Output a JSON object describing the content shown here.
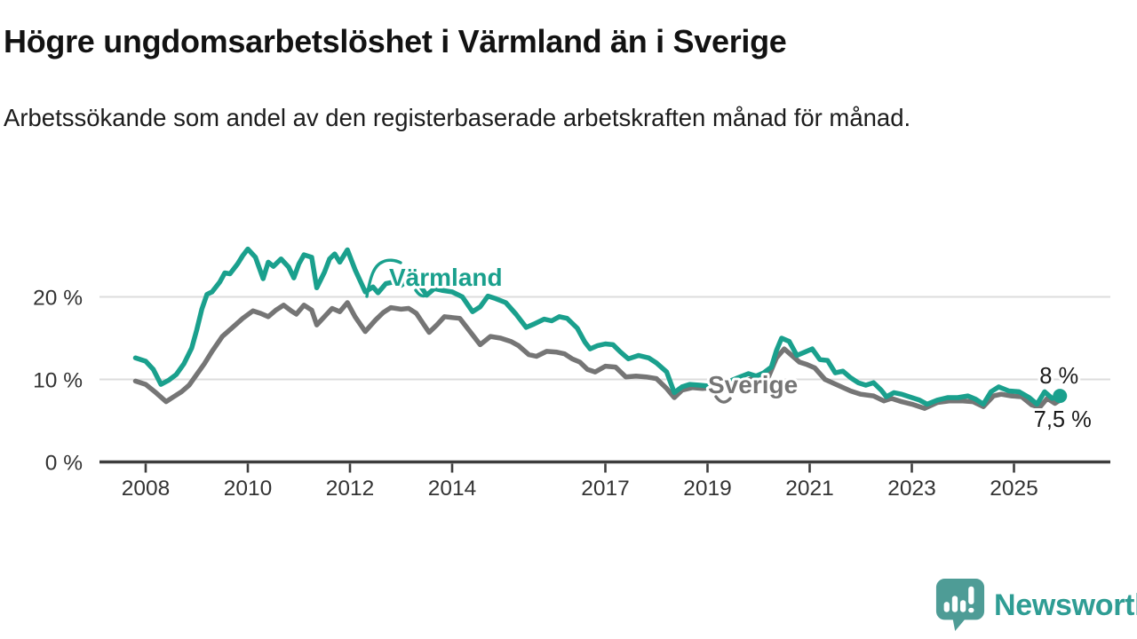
{
  "chart_data": {
    "type": "line",
    "title": "Högre ungdomsarbetslöshet i Värmland än i Sverige",
    "subtitle": "Arbetssökande som andel av den registerbaserade arbetskraften månad för månad.",
    "unit": "%",
    "grid": "horizontal",
    "legend_position": "direct-line-labels",
    "xlim": [
      2007.7,
      2026.3
    ],
    "ylim": [
      0,
      28
    ],
    "x_ticks": [
      "2008",
      "2010",
      "2012",
      "2014",
      "2017",
      "2019",
      "2021",
      "2023",
      "2025"
    ],
    "x_tick_years": [
      2008,
      2010,
      2012,
      2014,
      2017,
      2019,
      2021,
      2023,
      2025
    ],
    "y_ticks": [
      {
        "value": 20,
        "label": "20 %"
      },
      {
        "value": 10,
        "label": "10 %"
      },
      {
        "value": 0,
        "label": "0 %"
      }
    ],
    "colors": {
      "varmland": "#1aa08d",
      "sverige": "#757575",
      "grid": "#dcdcdc",
      "axis": "#3d3d3d",
      "tick_text": "#333333",
      "end_label_text": "#1a1a1a"
    },
    "series": [
      {
        "name": "Sverige",
        "label_text": "Sverige",
        "end_label": "7,5 %",
        "end_value": 7.5,
        "color": "#757575",
        "end_dot": false,
        "points": [
          [
            2007.8,
            9.8
          ],
          [
            2008.0,
            9.4
          ],
          [
            2008.2,
            8.4
          ],
          [
            2008.4,
            7.3
          ],
          [
            2008.55,
            7.9
          ],
          [
            2008.7,
            8.5
          ],
          [
            2008.85,
            9.3
          ],
          [
            2009.0,
            10.6
          ],
          [
            2009.15,
            11.9
          ],
          [
            2009.3,
            13.4
          ],
          [
            2009.5,
            15.2
          ],
          [
            2009.7,
            16.3
          ],
          [
            2009.9,
            17.4
          ],
          [
            2010.1,
            18.3
          ],
          [
            2010.25,
            18.0
          ],
          [
            2010.4,
            17.6
          ],
          [
            2010.55,
            18.4
          ],
          [
            2010.7,
            19.0
          ],
          [
            2010.85,
            18.3
          ],
          [
            2010.95,
            17.9
          ],
          [
            2011.1,
            19.0
          ],
          [
            2011.25,
            18.4
          ],
          [
            2011.35,
            16.6
          ],
          [
            2011.5,
            17.6
          ],
          [
            2011.65,
            18.6
          ],
          [
            2011.8,
            18.2
          ],
          [
            2011.95,
            19.3
          ],
          [
            2012.1,
            17.6
          ],
          [
            2012.3,
            15.8
          ],
          [
            2012.5,
            17.2
          ],
          [
            2012.65,
            18.1
          ],
          [
            2012.8,
            18.7
          ],
          [
            2013.0,
            18.5
          ],
          [
            2013.15,
            18.6
          ],
          [
            2013.3,
            18.0
          ],
          [
            2013.45,
            16.6
          ],
          [
            2013.55,
            15.7
          ],
          [
            2013.7,
            16.6
          ],
          [
            2013.85,
            17.6
          ],
          [
            2014.0,
            17.5
          ],
          [
            2014.15,
            17.4
          ],
          [
            2014.35,
            15.8
          ],
          [
            2014.55,
            14.2
          ],
          [
            2014.75,
            15.2
          ],
          [
            2014.95,
            15.0
          ],
          [
            2015.15,
            14.6
          ],
          [
            2015.3,
            14.1
          ],
          [
            2015.5,
            13.0
          ],
          [
            2015.65,
            12.8
          ],
          [
            2015.85,
            13.4
          ],
          [
            2016.05,
            13.3
          ],
          [
            2016.2,
            13.1
          ],
          [
            2016.35,
            12.5
          ],
          [
            2016.5,
            12.1
          ],
          [
            2016.65,
            11.2
          ],
          [
            2016.8,
            10.9
          ],
          [
            2017.0,
            11.6
          ],
          [
            2017.2,
            11.5
          ],
          [
            2017.4,
            10.3
          ],
          [
            2017.6,
            10.4
          ],
          [
            2017.8,
            10.3
          ],
          [
            2018.0,
            10.1
          ],
          [
            2018.2,
            8.9
          ],
          [
            2018.35,
            7.8
          ],
          [
            2018.5,
            8.7
          ],
          [
            2018.7,
            9.0
          ],
          [
            2018.9,
            8.9
          ],
          [
            2019.1,
            9.0
          ],
          [
            2019.3,
            9.1
          ],
          [
            2019.5,
            9.4
          ],
          [
            2019.7,
            9.8
          ],
          [
            2019.9,
            10.1
          ],
          [
            2020.05,
            10.0
          ],
          [
            2020.2,
            10.4
          ],
          [
            2020.35,
            12.6
          ],
          [
            2020.5,
            13.7
          ],
          [
            2020.65,
            12.9
          ],
          [
            2020.8,
            12.1
          ],
          [
            2020.95,
            11.8
          ],
          [
            2021.1,
            11.4
          ],
          [
            2021.3,
            10.0
          ],
          [
            2021.55,
            9.3
          ],
          [
            2021.8,
            8.6
          ],
          [
            2022.0,
            8.2
          ],
          [
            2022.25,
            8.0
          ],
          [
            2022.45,
            7.4
          ],
          [
            2022.6,
            7.7
          ],
          [
            2022.8,
            7.3
          ],
          [
            2023.0,
            7.0
          ],
          [
            2023.25,
            6.5
          ],
          [
            2023.5,
            7.2
          ],
          [
            2023.75,
            7.4
          ],
          [
            2024.0,
            7.4
          ],
          [
            2024.2,
            7.3
          ],
          [
            2024.4,
            6.7
          ],
          [
            2024.6,
            8.0
          ],
          [
            2024.75,
            8.2
          ],
          [
            2024.95,
            8.0
          ],
          [
            2025.15,
            7.9
          ],
          [
            2025.35,
            6.9
          ],
          [
            2025.5,
            6.6
          ],
          [
            2025.65,
            7.7
          ],
          [
            2025.8,
            7.1
          ],
          [
            2025.9,
            7.5
          ]
        ]
      },
      {
        "name": "Värmland",
        "label_text": "Värmland",
        "end_label": "8 %",
        "end_value": 8,
        "color": "#1aa08d",
        "end_dot": true,
        "points": [
          [
            2007.8,
            12.6
          ],
          [
            2008.0,
            12.2
          ],
          [
            2008.15,
            11.2
          ],
          [
            2008.3,
            9.4
          ],
          [
            2008.45,
            9.9
          ],
          [
            2008.6,
            10.6
          ],
          [
            2008.75,
            11.9
          ],
          [
            2008.9,
            13.8
          ],
          [
            2009.0,
            16.0
          ],
          [
            2009.1,
            18.5
          ],
          [
            2009.2,
            20.3
          ],
          [
            2009.3,
            20.6
          ],
          [
            2009.45,
            21.8
          ],
          [
            2009.55,
            22.9
          ],
          [
            2009.65,
            22.8
          ],
          [
            2009.8,
            24.0
          ],
          [
            2009.9,
            25.0
          ],
          [
            2010.0,
            25.8
          ],
          [
            2010.15,
            24.8
          ],
          [
            2010.3,
            22.2
          ],
          [
            2010.4,
            24.2
          ],
          [
            2010.5,
            23.7
          ],
          [
            2010.65,
            24.6
          ],
          [
            2010.8,
            23.6
          ],
          [
            2010.9,
            22.3
          ],
          [
            2011.0,
            24.0
          ],
          [
            2011.1,
            25.1
          ],
          [
            2011.25,
            24.8
          ],
          [
            2011.35,
            21.1
          ],
          [
            2011.5,
            23.0
          ],
          [
            2011.6,
            24.6
          ],
          [
            2011.7,
            25.2
          ],
          [
            2011.8,
            24.2
          ],
          [
            2011.95,
            25.7
          ],
          [
            2012.1,
            23.3
          ],
          [
            2012.3,
            20.6
          ],
          [
            2012.45,
            21.2
          ],
          [
            2012.55,
            20.5
          ],
          [
            2012.7,
            21.6
          ],
          [
            2012.85,
            21.8
          ],
          [
            2013.0,
            21.4
          ],
          [
            2013.2,
            22.3
          ],
          [
            2013.35,
            21.6
          ],
          [
            2013.5,
            20.2
          ],
          [
            2013.65,
            21.0
          ],
          [
            2013.8,
            20.8
          ],
          [
            2014.0,
            20.6
          ],
          [
            2014.2,
            20.0
          ],
          [
            2014.4,
            18.2
          ],
          [
            2014.55,
            18.8
          ],
          [
            2014.7,
            20.1
          ],
          [
            2014.85,
            19.8
          ],
          [
            2015.05,
            19.3
          ],
          [
            2015.25,
            17.9
          ],
          [
            2015.45,
            16.3
          ],
          [
            2015.6,
            16.7
          ],
          [
            2015.8,
            17.3
          ],
          [
            2015.95,
            17.1
          ],
          [
            2016.1,
            17.6
          ],
          [
            2016.25,
            17.4
          ],
          [
            2016.45,
            16.2
          ],
          [
            2016.6,
            14.5
          ],
          [
            2016.7,
            13.7
          ],
          [
            2016.85,
            14.1
          ],
          [
            2017.0,
            14.3
          ],
          [
            2017.15,
            14.2
          ],
          [
            2017.3,
            13.3
          ],
          [
            2017.45,
            12.5
          ],
          [
            2017.65,
            12.9
          ],
          [
            2017.85,
            12.6
          ],
          [
            2018.0,
            12.0
          ],
          [
            2018.2,
            10.9
          ],
          [
            2018.35,
            8.4
          ],
          [
            2018.5,
            9.1
          ],
          [
            2018.65,
            9.4
          ],
          [
            2018.85,
            9.3
          ],
          [
            2019.0,
            9.2
          ],
          [
            2019.2,
            9.4
          ],
          [
            2019.4,
            9.7
          ],
          [
            2019.6,
            10.2
          ],
          [
            2019.8,
            10.7
          ],
          [
            2019.95,
            10.4
          ],
          [
            2020.1,
            10.8
          ],
          [
            2020.25,
            11.5
          ],
          [
            2020.35,
            13.5
          ],
          [
            2020.45,
            15.0
          ],
          [
            2020.6,
            14.6
          ],
          [
            2020.75,
            12.9
          ],
          [
            2020.9,
            13.3
          ],
          [
            2021.05,
            13.7
          ],
          [
            2021.2,
            12.4
          ],
          [
            2021.35,
            12.3
          ],
          [
            2021.5,
            10.8
          ],
          [
            2021.65,
            11.0
          ],
          [
            2021.8,
            10.2
          ],
          [
            2021.95,
            9.6
          ],
          [
            2022.1,
            9.3
          ],
          [
            2022.25,
            9.6
          ],
          [
            2022.4,
            8.7
          ],
          [
            2022.5,
            7.9
          ],
          [
            2022.65,
            8.4
          ],
          [
            2022.8,
            8.2
          ],
          [
            2023.0,
            7.8
          ],
          [
            2023.15,
            7.5
          ],
          [
            2023.3,
            7.0
          ],
          [
            2023.5,
            7.5
          ],
          [
            2023.7,
            7.8
          ],
          [
            2023.9,
            7.8
          ],
          [
            2024.1,
            8.0
          ],
          [
            2024.25,
            7.6
          ],
          [
            2024.4,
            7.0
          ],
          [
            2024.55,
            8.5
          ],
          [
            2024.7,
            9.1
          ],
          [
            2024.9,
            8.6
          ],
          [
            2025.1,
            8.5
          ],
          [
            2025.3,
            7.8
          ],
          [
            2025.45,
            7.0
          ],
          [
            2025.6,
            8.5
          ],
          [
            2025.75,
            7.7
          ],
          [
            2025.9,
            8.0
          ]
        ]
      }
    ]
  },
  "footer": {
    "brand": "Newsworthy",
    "logo_icon": "speech-bubble-bar-chart-icon",
    "logo_bubble_color": "#4e9c96",
    "logo_text_color": "#2f9d94"
  }
}
